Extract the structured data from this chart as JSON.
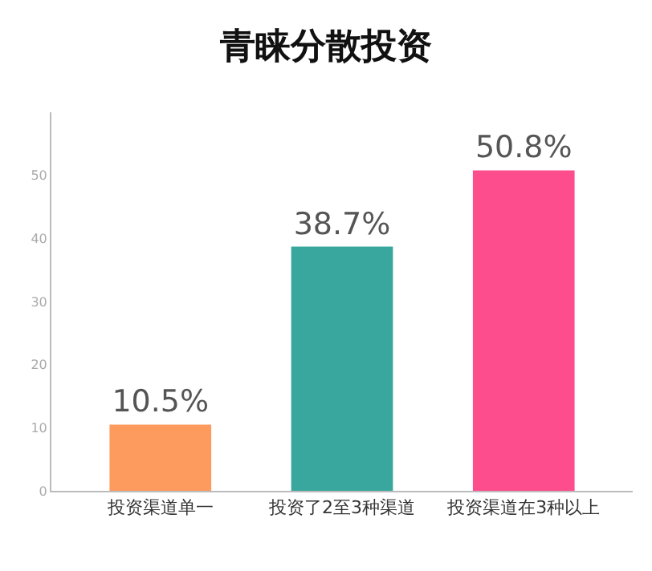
{
  "chart_data": {
    "type": "bar",
    "title": "青睐分散投资",
    "categories": [
      "投资渠道单一",
      "投资了2至3种渠道",
      "投资渠道在3种以上"
    ],
    "values": [
      10.5,
      38.7,
      50.8
    ],
    "colors": [
      "#fd9a5e",
      "#3aa79f",
      "#fe4d8d"
    ],
    "value_labels": [
      "10.5%",
      "38.7%",
      "50.8%"
    ],
    "ylim": [
      0,
      60
    ],
    "yticks": [
      0,
      10,
      20,
      30,
      40,
      50
    ],
    "grid": false
  }
}
